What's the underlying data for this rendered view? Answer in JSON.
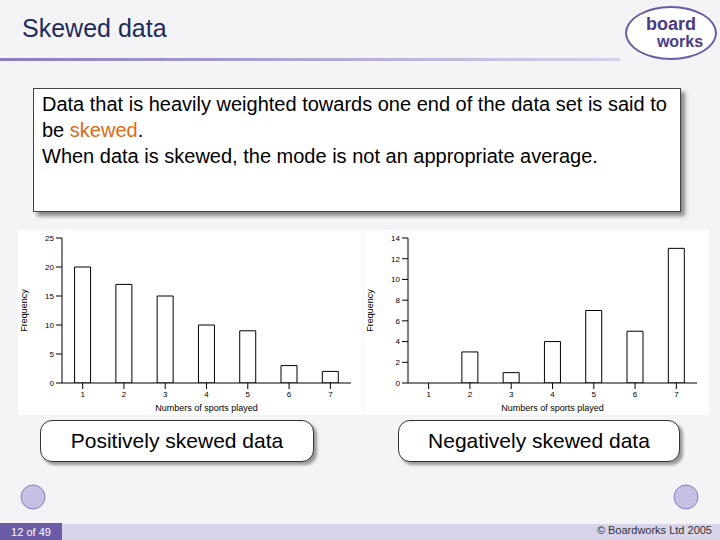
{
  "slide": {
    "title": "Skewed data",
    "logo_top": "board",
    "logo_bottom": "works",
    "intro": "Data that is heavily weighted towards one end of the data set is said to be ",
    "highlight": "skewed",
    "intro_end": ".",
    "second_line": "When data is skewed, the mode is not an appropriate average.",
    "page": "12 of 49",
    "copyright": "© Boardworks Ltd 2005"
  },
  "chart_data": [
    {
      "type": "bar",
      "title": "Positively skewed data",
      "x_label": "Numbers of sports played",
      "y_label": "Frequency",
      "categories": [
        "1",
        "2",
        "3",
        "4",
        "5",
        "6",
        "7"
      ],
      "values": [
        20,
        17,
        15,
        10,
        9,
        3,
        2
      ],
      "color": "#ffffff",
      "ylim": [
        0,
        25
      ],
      "yticks": [
        0,
        5,
        10,
        15,
        20,
        25
      ]
    },
    {
      "type": "bar",
      "title": "Negatively skewed data",
      "x_label": "Numbers of sports played",
      "y_label": "Frequency",
      "categories": [
        "1",
        "2",
        "3",
        "4",
        "5",
        "6",
        "7"
      ],
      "values": [
        0,
        3,
        1,
        4,
        7,
        5,
        13
      ],
      "color": "#ffffff",
      "ylim": [
        0,
        14
      ],
      "yticks": [
        0,
        2,
        4,
        6,
        8,
        10,
        12,
        14
      ]
    }
  ]
}
